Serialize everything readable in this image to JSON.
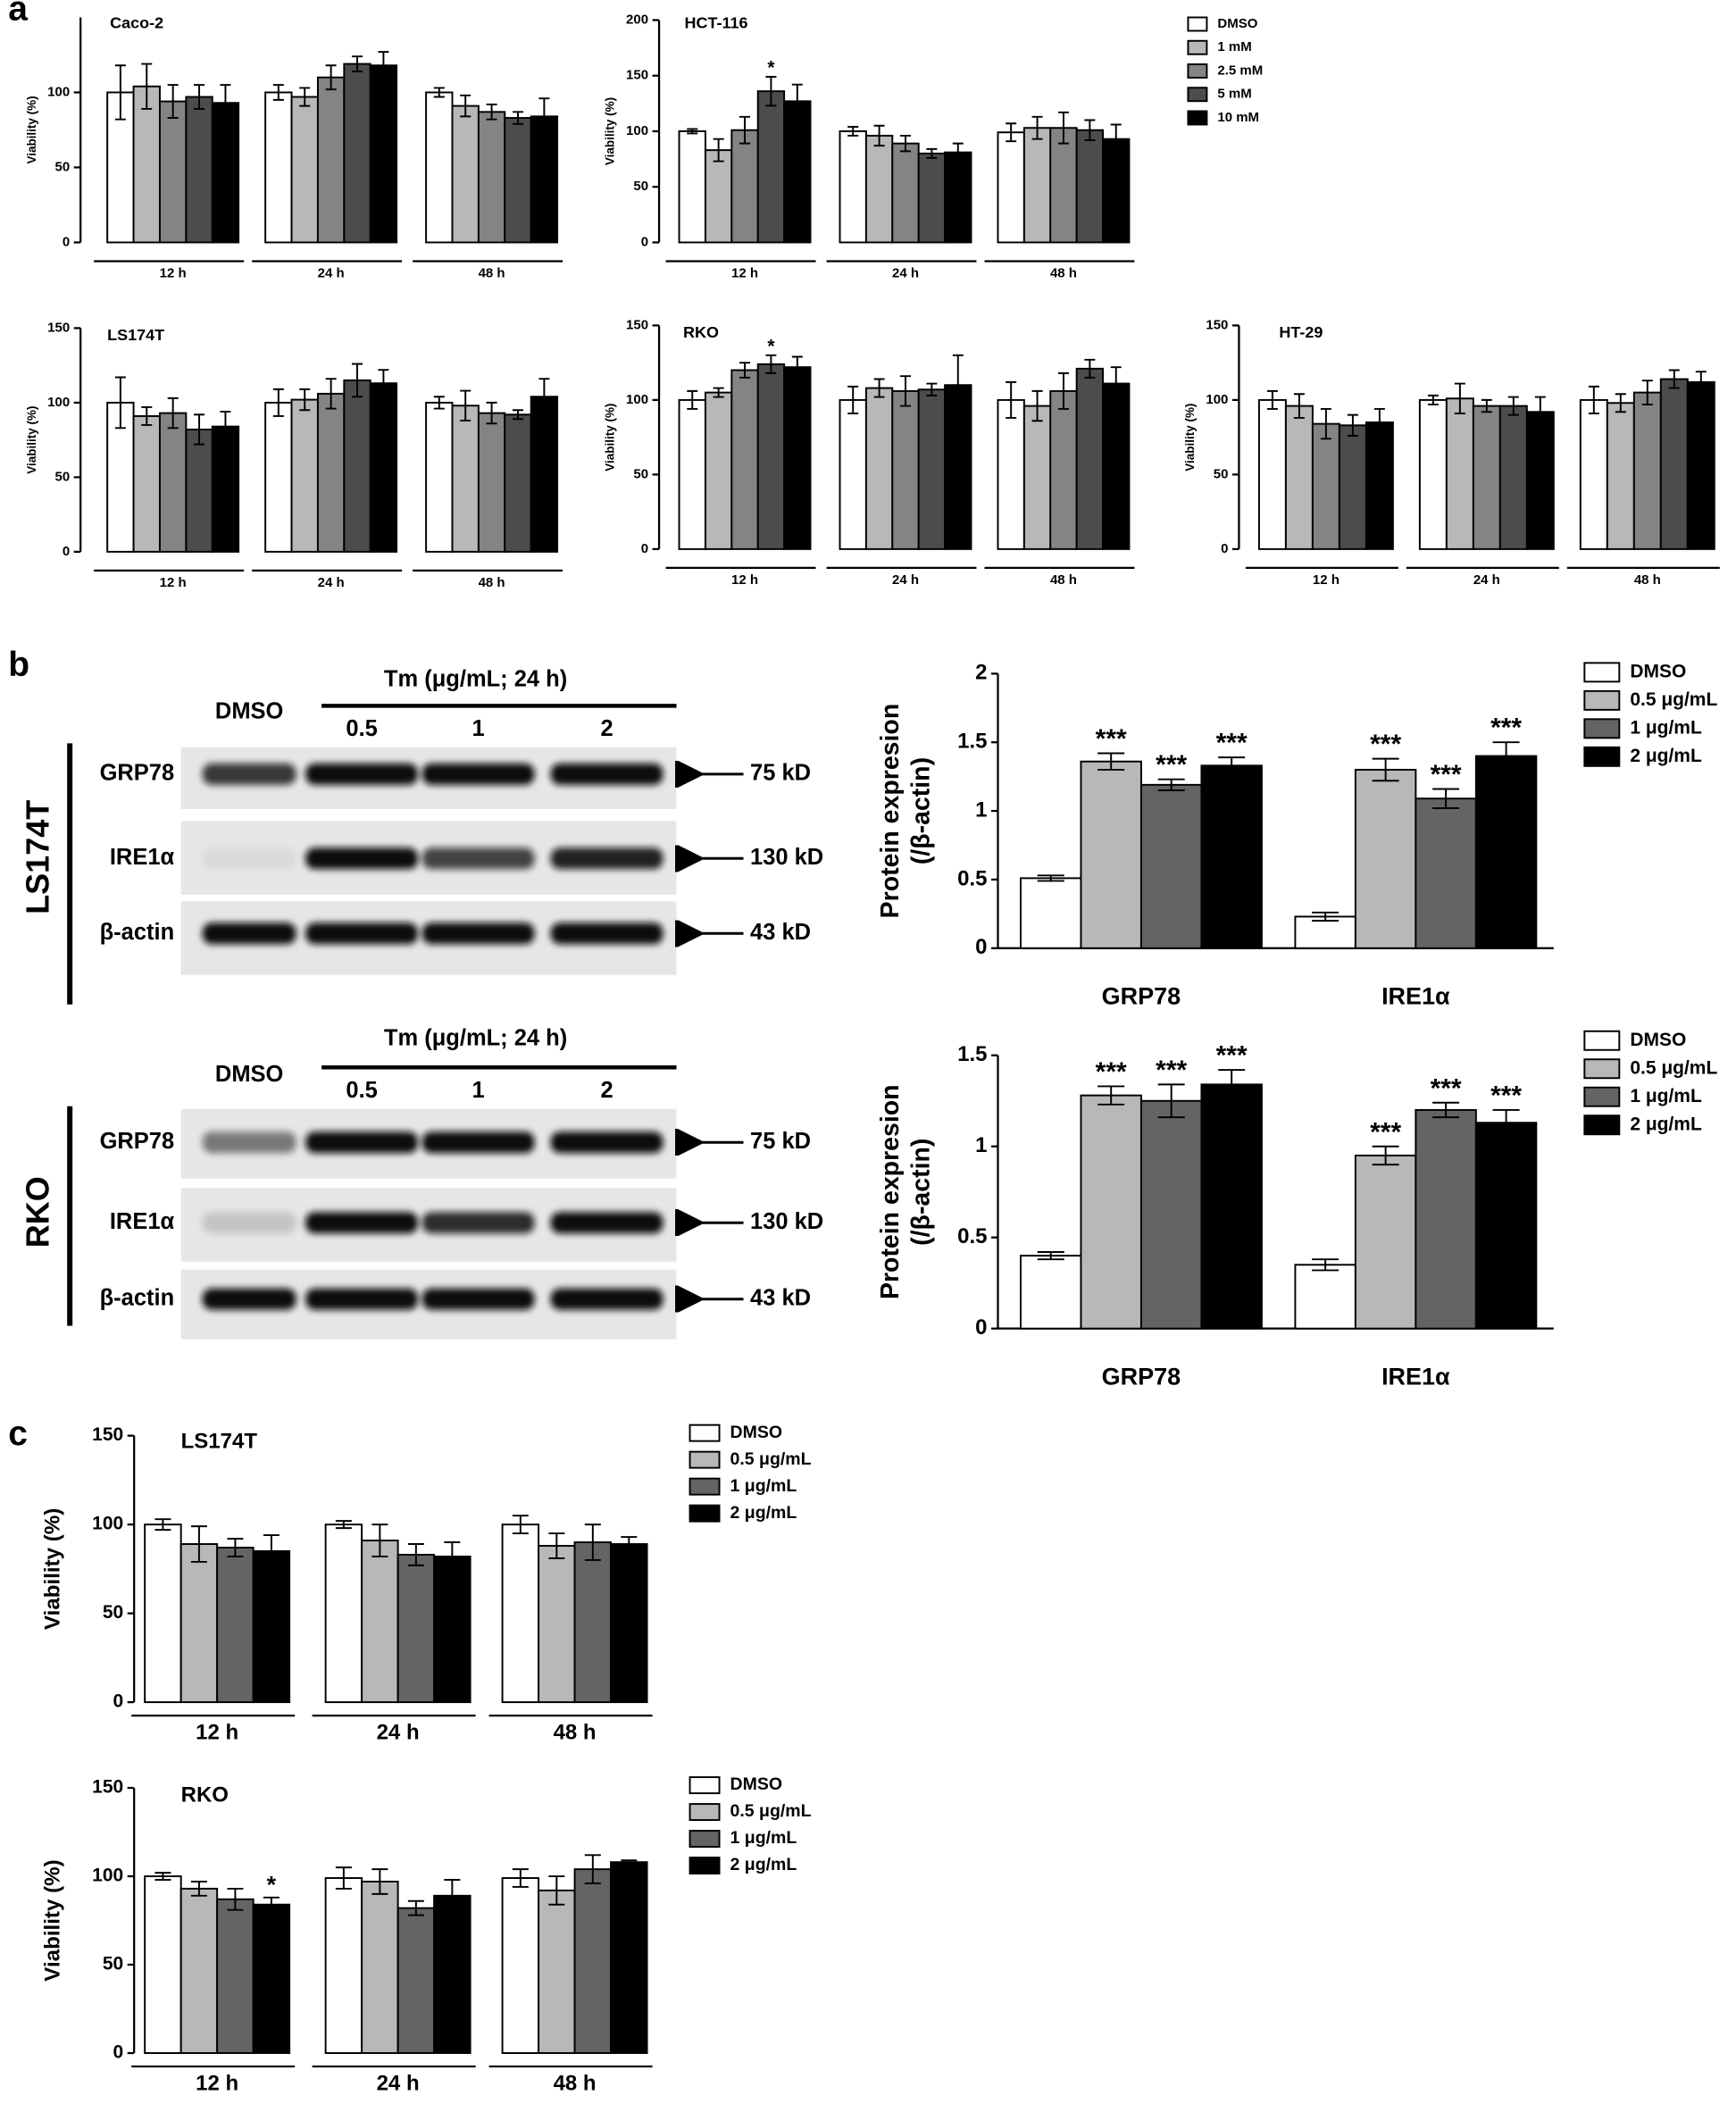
{
  "panel_labels": [
    "a",
    "b",
    "c"
  ],
  "chart_data": [
    {
      "type": "bar",
      "title": "Caco-2",
      "ylabel": "Viability (%)",
      "ylim": [
        0,
        150
      ],
      "yticks": [
        0,
        50,
        100
      ],
      "categories": [
        "12 h",
        "24 h",
        "48 h"
      ],
      "series": [
        {
          "color": "#ffffff",
          "values": [
            100,
            100,
            100
          ],
          "errors": [
            18,
            5,
            3
          ]
        },
        {
          "color": "#b8b8b8",
          "values": [
            104,
            97,
            91
          ],
          "errors": [
            15,
            6,
            7
          ]
        },
        {
          "color": "#848484",
          "values": [
            94,
            110,
            87
          ],
          "errors": [
            11,
            8,
            5
          ]
        },
        {
          "color": "#4c4c4c",
          "values": [
            97,
            119,
            83
          ],
          "errors": [
            8,
            5,
            4
          ]
        },
        {
          "color": "#000000",
          "values": [
            93,
            118,
            84
          ],
          "errors": [
            12,
            9,
            12
          ]
        }
      ]
    },
    {
      "type": "bar",
      "title": "HCT-116",
      "ylabel": "Viability (%)",
      "ylim": [
        0,
        200
      ],
      "yticks": [
        0,
        50,
        100,
        150,
        200
      ],
      "categories": [
        "12 h",
        "24 h",
        "48 h"
      ],
      "legend": true,
      "series": [
        {
          "name": "DMSO",
          "color": "#ffffff",
          "values": [
            100,
            100,
            99
          ],
          "errors": [
            2,
            4,
            8
          ]
        },
        {
          "name": "1 mM",
          "color": "#b8b8b8",
          "values": [
            83,
            96,
            103
          ],
          "errors": [
            10,
            9,
            10
          ]
        },
        {
          "name": "2.5 mM",
          "color": "#848484",
          "values": [
            101,
            89,
            103
          ],
          "errors": [
            12,
            7,
            14
          ]
        },
        {
          "name": "5 mM",
          "color": "#4c4c4c",
          "values": [
            136,
            80,
            101
          ],
          "errors": [
            13,
            4,
            9
          ],
          "annotations": [
            "*",
            null,
            null
          ]
        },
        {
          "name": "10 mM",
          "color": "#000000",
          "values": [
            127,
            81,
            93
          ],
          "errors": [
            15,
            8,
            13
          ]
        }
      ]
    },
    {
      "type": "bar",
      "title": "LS174T",
      "ylabel": "Viability (%)",
      "ylim": [
        0,
        150
      ],
      "yticks": [
        0,
        50,
        100,
        150
      ],
      "categories": [
        "12 h",
        "24 h",
        "48 h"
      ],
      "series": [
        {
          "color": "#ffffff",
          "values": [
            100,
            100,
            100
          ],
          "errors": [
            17,
            9,
            4
          ]
        },
        {
          "color": "#b8b8b8",
          "values": [
            91,
            102,
            98
          ],
          "errors": [
            6,
            7,
            10
          ]
        },
        {
          "color": "#848484",
          "values": [
            93,
            106,
            93
          ],
          "errors": [
            10,
            10,
            7
          ]
        },
        {
          "color": "#4c4c4c",
          "values": [
            82,
            115,
            92
          ],
          "errors": [
            10,
            11,
            3
          ]
        },
        {
          "color": "#000000",
          "values": [
            84,
            113,
            104
          ],
          "errors": [
            10,
            9,
            12
          ]
        }
      ]
    },
    {
      "type": "bar",
      "title": "RKO",
      "ylabel": "Viability (%)",
      "ylim": [
        0,
        150
      ],
      "yticks": [
        0,
        50,
        100,
        150
      ],
      "categories": [
        "12 h",
        "24 h",
        "48 h"
      ],
      "series": [
        {
          "color": "#ffffff",
          "values": [
            100,
            100,
            100
          ],
          "errors": [
            6,
            9,
            12
          ]
        },
        {
          "color": "#b8b8b8",
          "values": [
            105,
            108,
            96
          ],
          "errors": [
            3,
            6,
            10
          ]
        },
        {
          "color": "#848484",
          "values": [
            120,
            106,
            106
          ],
          "errors": [
            5,
            10,
            12
          ]
        },
        {
          "color": "#4c4c4c",
          "values": [
            124,
            107,
            121
          ],
          "errors": [
            6,
            4,
            6
          ],
          "annotations": [
            "*",
            null,
            null
          ]
        },
        {
          "color": "#000000",
          "values": [
            122,
            110,
            111
          ],
          "errors": [
            7,
            20,
            11
          ]
        }
      ]
    },
    {
      "type": "bar",
      "title": "HT-29",
      "ylabel": "Viability (%)",
      "ylim": [
        0,
        150
      ],
      "yticks": [
        0,
        50,
        100,
        150
      ],
      "categories": [
        "12 h",
        "24 h",
        "48 h"
      ],
      "series": [
        {
          "color": "#ffffff",
          "values": [
            100,
            100,
            100
          ],
          "errors": [
            6,
            3,
            9
          ]
        },
        {
          "color": "#b8b8b8",
          "values": [
            96,
            101,
            98
          ],
          "errors": [
            8,
            10,
            6
          ]
        },
        {
          "color": "#848484",
          "values": [
            84,
            96,
            105
          ],
          "errors": [
            10,
            4,
            8
          ]
        },
        {
          "color": "#4c4c4c",
          "values": [
            83,
            96,
            114
          ],
          "errors": [
            7,
            6,
            6
          ]
        },
        {
          "color": "#000000",
          "values": [
            85,
            92,
            112
          ],
          "errors": [
            9,
            10,
            7
          ]
        }
      ]
    },
    {
      "type": "bar",
      "ylabel": [
        "Protein expresion",
        "(/β-actin)"
      ],
      "ylim": [
        0,
        2
      ],
      "yticks": [
        0,
        0.5,
        1,
        1.5,
        2
      ],
      "categories": [
        "GRP78",
        "IRE1α"
      ],
      "legend": true,
      "series": [
        {
          "name": "DMSO",
          "color": "#ffffff",
          "values": [
            0.51,
            0.23
          ],
          "errors": [
            0.02,
            0.03
          ]
        },
        {
          "name": "0.5 μg/mL",
          "color": "#b8b8b8",
          "values": [
            1.36,
            1.3
          ],
          "errors": [
            0.06,
            0.08
          ],
          "annotations": [
            "***",
            "***"
          ]
        },
        {
          "name": "1 μg/mL",
          "color": "#646464",
          "values": [
            1.19,
            1.09
          ],
          "errors": [
            0.04,
            0.07
          ],
          "annotations": [
            "***",
            "***"
          ]
        },
        {
          "name": "2 μg/mL",
          "color": "#000000",
          "values": [
            1.33,
            1.4
          ],
          "errors": [
            0.06,
            0.1
          ],
          "annotations": [
            "***",
            "***"
          ]
        }
      ]
    },
    {
      "type": "bar",
      "ylabel": [
        "Protein expresion",
        "(/β-actin)"
      ],
      "ylim": [
        0,
        1.5
      ],
      "yticks": [
        0,
        0.5,
        1,
        1.5
      ],
      "categories": [
        "GRP78",
        "IRE1α"
      ],
      "legend": true,
      "series": [
        {
          "name": "DMSO",
          "color": "#ffffff",
          "values": [
            0.4,
            0.35
          ],
          "errors": [
            0.02,
            0.03
          ]
        },
        {
          "name": "0.5 μg/mL",
          "color": "#b8b8b8",
          "values": [
            1.28,
            0.95
          ],
          "errors": [
            0.05,
            0.05
          ],
          "annotations": [
            "***",
            "***"
          ]
        },
        {
          "name": "1 μg/mL",
          "color": "#646464",
          "values": [
            1.25,
            1.2
          ],
          "errors": [
            0.09,
            0.04
          ],
          "annotations": [
            "***",
            "***"
          ]
        },
        {
          "name": "2 μg/mL",
          "color": "#000000",
          "values": [
            1.34,
            1.13
          ],
          "errors": [
            0.08,
            0.07
          ],
          "annotations": [
            "***",
            "***"
          ]
        }
      ]
    },
    {
      "type": "bar",
      "title": "LS174T",
      "ylabel": "Viability (%)",
      "ylim": [
        0,
        150
      ],
      "yticks": [
        0,
        50,
        100,
        150
      ],
      "categories": [
        "12 h",
        "24 h",
        "48 h"
      ],
      "legend": true,
      "series": [
        {
          "name": "DMSO",
          "color": "#ffffff",
          "values": [
            100,
            100,
            100
          ],
          "errors": [
            3,
            2,
            5
          ]
        },
        {
          "name": "0.5 μg/mL",
          "color": "#b8b8b8",
          "values": [
            89,
            91,
            88
          ],
          "errors": [
            10,
            9,
            7
          ]
        },
        {
          "name": "1 μg/mL",
          "color": "#646464",
          "values": [
            87,
            83,
            90
          ],
          "errors": [
            5,
            6,
            10
          ]
        },
        {
          "name": "2 μg/mL",
          "color": "#000000",
          "values": [
            85,
            82,
            89
          ],
          "errors": [
            9,
            8,
            4
          ]
        }
      ]
    },
    {
      "type": "bar",
      "title": "RKO",
      "ylabel": "Viability (%)",
      "ylim": [
        0,
        150
      ],
      "yticks": [
        0,
        50,
        100,
        150
      ],
      "categories": [
        "12 h",
        "24 h",
        "48 h"
      ],
      "legend": true,
      "series": [
        {
          "name": "DMSO",
          "color": "#ffffff",
          "values": [
            100,
            99,
            99
          ],
          "errors": [
            2,
            6,
            5
          ]
        },
        {
          "name": "0.5 μg/mL",
          "color": "#b8b8b8",
          "values": [
            93,
            97,
            92
          ],
          "errors": [
            4,
            7,
            8
          ]
        },
        {
          "name": "1 μg/mL",
          "color": "#646464",
          "values": [
            87,
            82,
            104
          ],
          "errors": [
            6,
            4,
            8
          ]
        },
        {
          "name": "2 μg/mL",
          "color": "#000000",
          "values": [
            84,
            89,
            108
          ],
          "errors": [
            4,
            9,
            1
          ],
          "annotations": [
            "*",
            null,
            null
          ]
        }
      ]
    }
  ],
  "blots": [
    {
      "cell_line": "LS174T",
      "treatment": "Tm (μg/mL; 24 h)",
      "lanes": [
        "DMSO",
        "0.5",
        "1",
        "2"
      ],
      "rows": [
        {
          "protein": "GRP78",
          "size": "75 kD"
        },
        {
          "protein": "IRE1α",
          "size": "130 kD"
        },
        {
          "protein": "β-actin",
          "size": "43 kD"
        }
      ]
    },
    {
      "cell_line": "RKO",
      "treatment": "Tm (μg/mL; 24 h)",
      "lanes": [
        "DMSO",
        "0.5",
        "1",
        "2"
      ],
      "rows": [
        {
          "protein": "GRP78",
          "size": "75 kD"
        },
        {
          "protein": "IRE1α",
          "size": "130 kD"
        },
        {
          "protein": "β-actin",
          "size": "43 kD"
        }
      ]
    }
  ]
}
